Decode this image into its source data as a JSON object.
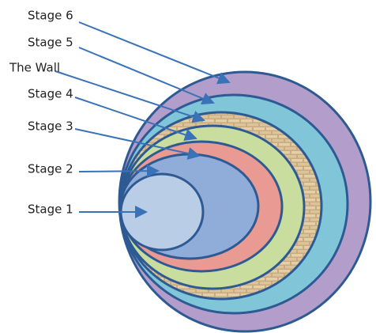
{
  "labels": [
    "Stage 6",
    "Stage 5",
    "The Wall",
    "Stage 4",
    "Stage 3",
    "Stage 2",
    "Stage 1"
  ]
}
